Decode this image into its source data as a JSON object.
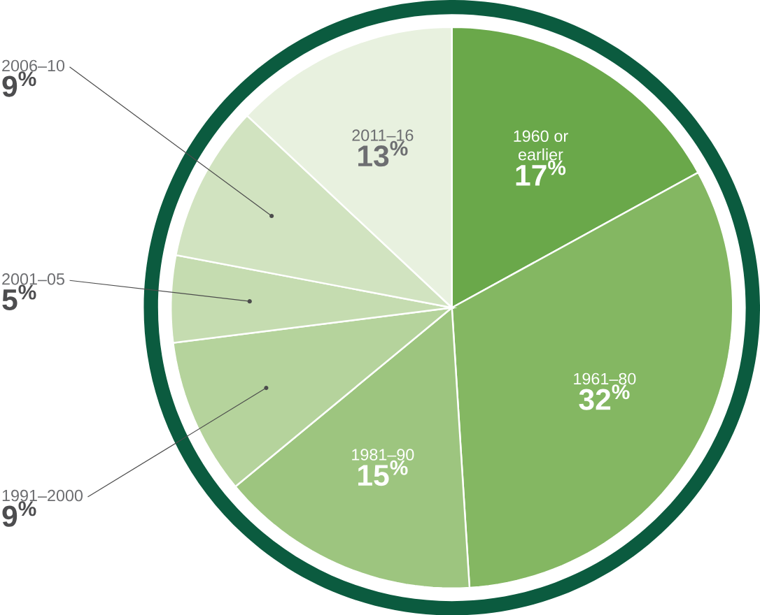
{
  "chart_data": {
    "type": "pie",
    "categories": [
      "1960 or earlier",
      "1961–80",
      "1981–90",
      "1991–2000",
      "2001–05",
      "2006–10",
      "2011–16"
    ],
    "values": [
      17,
      32,
      15,
      9,
      5,
      9,
      13
    ],
    "colors": [
      "#6aa84a",
      "#84b762",
      "#9dc57f",
      "#b5d39c",
      "#c5dcb0",
      "#d1e3c0",
      "#e8f1df"
    ],
    "value_labels": [
      "17$^{%}$",
      "32$^{%}$",
      "15$^{%}$",
      "9$^{%}$",
      "5$^{%}$",
      "9$^{%}$",
      "13$^{%}$"
    ]
  }
}
